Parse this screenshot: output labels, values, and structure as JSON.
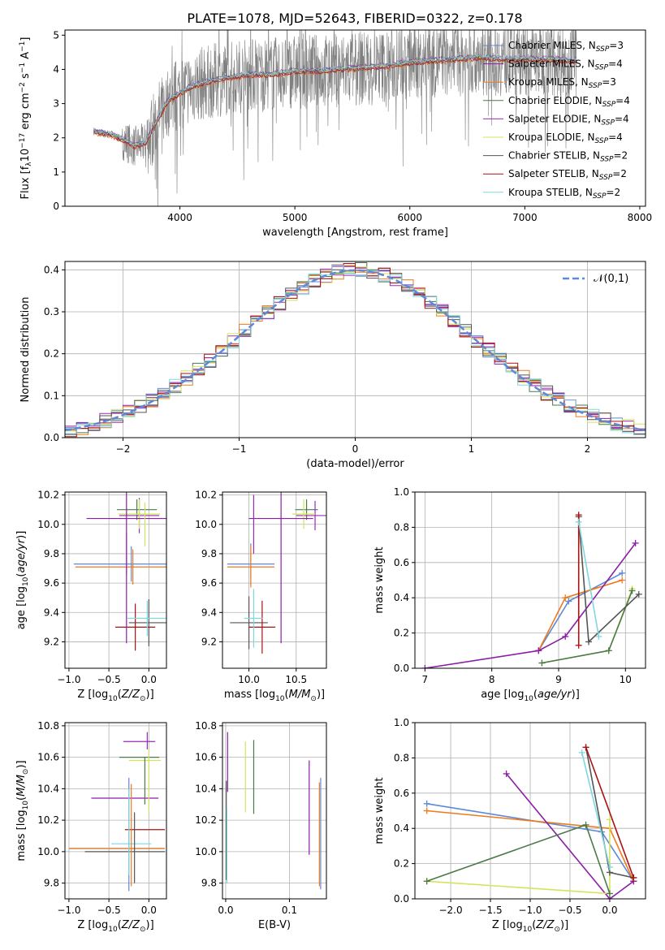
{
  "figure": {
    "title": "PLATE=1078, MJD=52643, FIBERID=0322, z=0.178"
  },
  "models": [
    {
      "name": "Chabrier MILES",
      "nssp": "3",
      "color": "#5e88d8"
    },
    {
      "name": "Salpeter MILES",
      "nssp": "4",
      "color": "#8a1ea6"
    },
    {
      "name": "Kroupa MILES",
      "nssp": "3",
      "color": "#ee7a1c"
    },
    {
      "name": "Chabrier ELODIE",
      "nssp": "4",
      "color": "#4a7a4a"
    },
    {
      "name": "Salpeter ELODIE",
      "nssp": "4",
      "color": "#9b2bb5"
    },
    {
      "name": "Kroupa ELODIE",
      "nssp": "4",
      "color": "#d4e35a"
    },
    {
      "name": "Chabrier STELIB",
      "nssp": "2",
      "color": "#555555"
    },
    {
      "name": "Salpeter STELIB",
      "nssp": "2",
      "color": "#aa1111"
    },
    {
      "name": "Kroupa STELIB",
      "nssp": "2",
      "color": "#7fd6dd"
    }
  ],
  "chart_data": [
    {
      "id": "spectrum",
      "type": "line",
      "title": "PLATE=1078, MJD=52643, FIBERID=0322, z=0.178",
      "xlabel": "wavelength [Angstrom, rest frame]",
      "ylabel": "Flux [f_λ 10^-17 erg cm^-2 s^-1 A^-1]",
      "xlim": [
        3000,
        8050
      ],
      "ylim": [
        0,
        5.15
      ],
      "xticks": [
        4000,
        5000,
        6000,
        7000,
        8000
      ],
      "yticks": [
        0,
        1,
        2,
        3,
        4,
        5
      ],
      "data_color": "#808080",
      "wavelength_range": [
        3250,
        7450
      ],
      "continuum": {
        "x": [
          3250,
          3300,
          3400,
          3500,
          3600,
          3700,
          3800,
          3900,
          4000,
          4100,
          4200,
          4400,
          4600,
          4800,
          5000,
          5200,
          5400,
          5600,
          5800,
          6000,
          6200,
          6400,
          6600,
          6800,
          7000,
          7200,
          7400
        ],
        "y": [
          2.2,
          2.15,
          2.1,
          1.95,
          1.75,
          1.85,
          2.5,
          3.1,
          3.3,
          3.5,
          3.6,
          3.75,
          3.85,
          3.85,
          3.95,
          3.95,
          4.0,
          4.05,
          4.1,
          4.2,
          4.25,
          4.3,
          4.35,
          4.3,
          4.3,
          4.3,
          4.25
        ]
      },
      "legend_position": "upper right"
    },
    {
      "id": "residuals",
      "type": "bar",
      "xlabel": "(data-model)/error",
      "ylabel": "Normed distribution",
      "xlim": [
        -2.5,
        2.5
      ],
      "ylim": [
        0,
        0.42
      ],
      "xticks": [
        -2,
        -1,
        0,
        1,
        2
      ],
      "yticks": [
        0.0,
        0.1,
        0.2,
        0.3,
        0.4
      ],
      "normal_label": "𝒩(0,1)",
      "normal_color": "#5e88d8",
      "grid": true,
      "legend_position": "upper right"
    },
    {
      "id": "age_vs_Z",
      "type": "scatter",
      "xlabel": "Z [log10(Z/Z_sun)]",
      "ylabel": "age  [log10(age/yr)]",
      "xlim": [
        -1.05,
        0.22
      ],
      "ylim": [
        9.02,
        10.22
      ],
      "xticks": [
        -1.0,
        -0.5,
        0.0
      ],
      "yticks": [
        9.2,
        9.4,
        9.6,
        9.8,
        10.0,
        10.2
      ],
      "grid": true,
      "errorbars": [
        {
          "m": 0,
          "x": -0.22,
          "y": 9.73,
          "xerr": 0.72,
          "yerr": 0.12
        },
        {
          "m": 2,
          "x": -0.2,
          "y": 9.71,
          "xerr": 0.72,
          "yerr": 0.12
        },
        {
          "m": 3,
          "x": -0.15,
          "y": 10.1,
          "xerr": 0.25,
          "yerr": 0.07
        },
        {
          "m": 4,
          "x": -0.12,
          "y": 10.06,
          "xerr": 0.25,
          "yerr": 0.12
        },
        {
          "m": 5,
          "x": -0.12,
          "y": 10.07,
          "xerr": 0.26,
          "yerr": 0.1
        },
        {
          "m": 6,
          "x": 0.0,
          "y": 9.33,
          "xerr": 0.25,
          "yerr": 0.16
        },
        {
          "m": 7,
          "x": -0.17,
          "y": 9.3,
          "xerr": 0.25,
          "yerr": 0.16
        },
        {
          "m": 8,
          "x": -0.02,
          "y": 9.36,
          "xerr": 0.25,
          "yerr": 0.12
        },
        {
          "m": 1,
          "x": -0.28,
          "y": 10.04,
          "xerr": 0.5,
          "yerr": 0.85
        },
        {
          "m": 4,
          "x": -0.28,
          "y": 9.8,
          "xerr": 0.0,
          "yerr": 0.14
        },
        {
          "m": 5,
          "x": -0.05,
          "y": 10.0,
          "xerr": 0.0,
          "yerr": 0.15
        }
      ]
    },
    {
      "id": "age_vs_mass",
      "type": "scatter",
      "xlabel": "mass [log10(M/M_sun)]",
      "ylabel": "",
      "xlim": [
        9.72,
        10.82
      ],
      "ylim": [
        9.02,
        10.22
      ],
      "xticks": [
        10.0,
        10.5
      ],
      "yticks": [
        9.2,
        9.4,
        9.6,
        9.8,
        10.0,
        10.2
      ],
      "grid": true,
      "errorbars": [
        {
          "m": 0,
          "x": 10.02,
          "y": 9.73,
          "xerr": 0.25,
          "yerr": 0.14
        },
        {
          "m": 2,
          "x": 10.02,
          "y": 9.71,
          "xerr": 0.25,
          "yerr": 0.14
        },
        {
          "m": 3,
          "x": 10.61,
          "y": 10.1,
          "xerr": 0.12,
          "yerr": 0.07
        },
        {
          "m": 4,
          "x": 10.7,
          "y": 10.06,
          "xerr": 0.2,
          "yerr": 0.1
        },
        {
          "m": 5,
          "x": 10.58,
          "y": 10.07,
          "xerr": 0.12,
          "yerr": 0.1
        },
        {
          "m": 6,
          "x": 10.0,
          "y": 9.33,
          "xerr": 0.2,
          "yerr": 0.18
        },
        {
          "m": 7,
          "x": 10.14,
          "y": 9.3,
          "xerr": 0.14,
          "yerr": 0.18
        },
        {
          "m": 8,
          "x": 10.05,
          "y": 9.36,
          "xerr": 0.1,
          "yerr": 0.2
        },
        {
          "m": 1,
          "x": 10.34,
          "y": 10.04,
          "xerr": 0.34,
          "yerr": 0.85
        },
        {
          "m": 4,
          "x": 10.05,
          "y": 10.0,
          "xerr": 0.0,
          "yerr": 0.2
        }
      ]
    },
    {
      "id": "massweight_vs_age",
      "type": "line",
      "xlabel": "age  [log10(age/yr)]",
      "ylabel": "mass weight",
      "xlim": [
        6.85,
        10.3
      ],
      "ylim": [
        0,
        1.0
      ],
      "xticks": [
        7,
        8,
        9,
        10
      ],
      "yticks": [
        0.0,
        0.2,
        0.4,
        0.6,
        0.8,
        1.0
      ],
      "grid": true,
      "series": [
        {
          "m": 0,
          "x": [
            8.7,
            9.15,
            9.95
          ],
          "y": [
            0.1,
            0.38,
            0.54
          ]
        },
        {
          "m": 2,
          "x": [
            8.7,
            9.1,
            9.95
          ],
          "y": [
            0.1,
            0.4,
            0.5
          ]
        },
        {
          "m": 1,
          "x": [
            7.0,
            8.7,
            9.1,
            10.15
          ],
          "y": [
            0.0,
            0.1,
            0.18,
            0.71
          ]
        },
        {
          "m": 5,
          "x": [
            8.75,
            9.75,
            10.1
          ],
          "y": [
            0.03,
            0.1,
            0.45
          ]
        },
        {
          "m": 3,
          "x": [
            8.75,
            9.75,
            10.1
          ],
          "y": [
            0.03,
            0.1,
            0.44
          ]
        },
        {
          "m": 6,
          "x": [
            9.3,
            9.45,
            10.2
          ],
          "y": [
            0.86,
            0.15,
            0.42
          ]
        },
        {
          "m": 7,
          "x": [
            9.3,
            9.3
          ],
          "y": [
            0.87,
            0.13
          ]
        },
        {
          "m": 8,
          "x": [
            9.3,
            9.6
          ],
          "y": [
            0.83,
            0.18
          ]
        }
      ]
    },
    {
      "id": "mass_vs_Z",
      "type": "scatter",
      "xlabel": "Z [log10(Z/Z_sun)]",
      "ylabel": "mass [log10(M/M_sun)]",
      "xlim": [
        -1.05,
        0.22
      ],
      "ylim": [
        9.7,
        10.82
      ],
      "xticks": [
        -1.0,
        -0.5,
        0.0
      ],
      "yticks": [
        9.8,
        10.0,
        10.2,
        10.4,
        10.6,
        10.8
      ],
      "grid": true,
      "errorbars": [
        {
          "m": 0,
          "x": -0.4,
          "y": 10.02,
          "xerr": 0.6,
          "yerr": 0.0
        },
        {
          "m": 2,
          "x": -0.4,
          "y": 10.02,
          "xerr": 0.6,
          "yerr": 0.0
        },
        {
          "m": 3,
          "x": -0.12,
          "y": 10.6,
          "xerr": 0.25,
          "yerr": 0.0
        },
        {
          "m": 4,
          "x": -0.12,
          "y": 10.7,
          "xerr": 0.2,
          "yerr": 0.0
        },
        {
          "m": 5,
          "x": -0.05,
          "y": 10.58,
          "xerr": 0.2,
          "yerr": 0.0
        },
        {
          "m": 7,
          "x": -0.05,
          "y": 10.14,
          "xerr": 0.25,
          "yerr": 0.0
        },
        {
          "m": 1,
          "x": -0.3,
          "y": 10.34,
          "xerr": 0.42,
          "yerr": 0.0
        },
        {
          "m": 8,
          "x": -0.22,
          "y": 10.05,
          "xerr": 0.25,
          "yerr": 0.0
        },
        {
          "m": 6,
          "x": -0.3,
          "y": 10.0,
          "xerr": 0.5,
          "yerr": 0.0
        }
      ],
      "vbars": [
        {
          "m": 0,
          "x": -0.25,
          "y1": 9.75,
          "y2": 10.47
        },
        {
          "m": 2,
          "x": -0.22,
          "y1": 9.78,
          "y2": 10.43
        },
        {
          "m": 6,
          "x": -0.18,
          "y1": 9.8,
          "y2": 10.25
        },
        {
          "m": 8,
          "x": -0.25,
          "y1": 9.85,
          "y2": 10.4
        },
        {
          "m": 4,
          "x": -0.02,
          "y1": 10.65,
          "y2": 10.76
        },
        {
          "m": 5,
          "x": 0.0,
          "y1": 10.25,
          "y2": 10.65
        },
        {
          "m": 3,
          "x": -0.05,
          "y1": 10.3,
          "y2": 10.6
        }
      ]
    },
    {
      "id": "mass_vs_ebv",
      "type": "scatter",
      "xlabel": "E(B-V)",
      "ylabel": "",
      "xlim": [
        -0.005,
        0.158
      ],
      "ylim": [
        9.7,
        10.82
      ],
      "xticks": [
        0.0,
        0.1
      ],
      "yticks": [
        9.8,
        10.0,
        10.2,
        10.4,
        10.6,
        10.8
      ],
      "grid": true,
      "vbars": [
        {
          "m": 6,
          "x": 0.001,
          "y1": 9.82,
          "y2": 10.45
        },
        {
          "m": 1,
          "x": 0.003,
          "y1": 10.38,
          "y2": 10.76
        },
        {
          "m": 8,
          "x": 0.002,
          "y1": 9.8,
          "y2": 10.28
        },
        {
          "m": 5,
          "x": 0.031,
          "y1": 10.25,
          "y2": 10.7
        },
        {
          "m": 3,
          "x": 0.044,
          "y1": 10.24,
          "y2": 10.71
        },
        {
          "m": 1,
          "x": 0.131,
          "y1": 9.98,
          "y2": 10.58
        },
        {
          "m": 2,
          "x": 0.147,
          "y1": 9.78,
          "y2": 10.44
        },
        {
          "m": 0,
          "x": 0.149,
          "y1": 9.76,
          "y2": 10.47
        }
      ]
    },
    {
      "id": "massweight_vs_Z",
      "type": "line",
      "xlabel": "Z [log10(Z/Z_sun)]",
      "ylabel": "mass weight",
      "xlim": [
        -2.45,
        0.45
      ],
      "ylim": [
        0,
        1.0
      ],
      "xticks": [
        -2.0,
        -1.5,
        -1.0,
        -0.5,
        0.0
      ],
      "yticks": [
        0.0,
        0.2,
        0.4,
        0.6,
        0.8,
        1.0
      ],
      "grid": true,
      "series": [
        {
          "m": 0,
          "x": [
            -2.3,
            -0.1,
            0.3
          ],
          "y": [
            0.54,
            0.38,
            0.1
          ]
        },
        {
          "m": 2,
          "x": [
            -2.3,
            0.0,
            0.3
          ],
          "y": [
            0.5,
            0.4,
            0.1
          ]
        },
        {
          "m": 1,
          "x": [
            -1.3,
            0.0,
            0.3
          ],
          "y": [
            0.71,
            0.0,
            0.1
          ]
        },
        {
          "m": 5,
          "x": [
            -2.3,
            0.0,
            0.0
          ],
          "y": [
            0.1,
            0.03,
            0.45
          ]
        },
        {
          "m": 3,
          "x": [
            -2.3,
            -0.3,
            0.0
          ],
          "y": [
            0.1,
            0.42,
            0.03
          ]
        },
        {
          "m": 6,
          "x": [
            -0.3,
            0.0,
            0.3
          ],
          "y": [
            0.86,
            0.15,
            0.12
          ]
        },
        {
          "m": 7,
          "x": [
            -0.3,
            0.3
          ],
          "y": [
            0.86,
            0.12
          ]
        },
        {
          "m": 8,
          "x": [
            -0.35,
            0.0
          ],
          "y": [
            0.83,
            0.18
          ]
        }
      ]
    }
  ]
}
